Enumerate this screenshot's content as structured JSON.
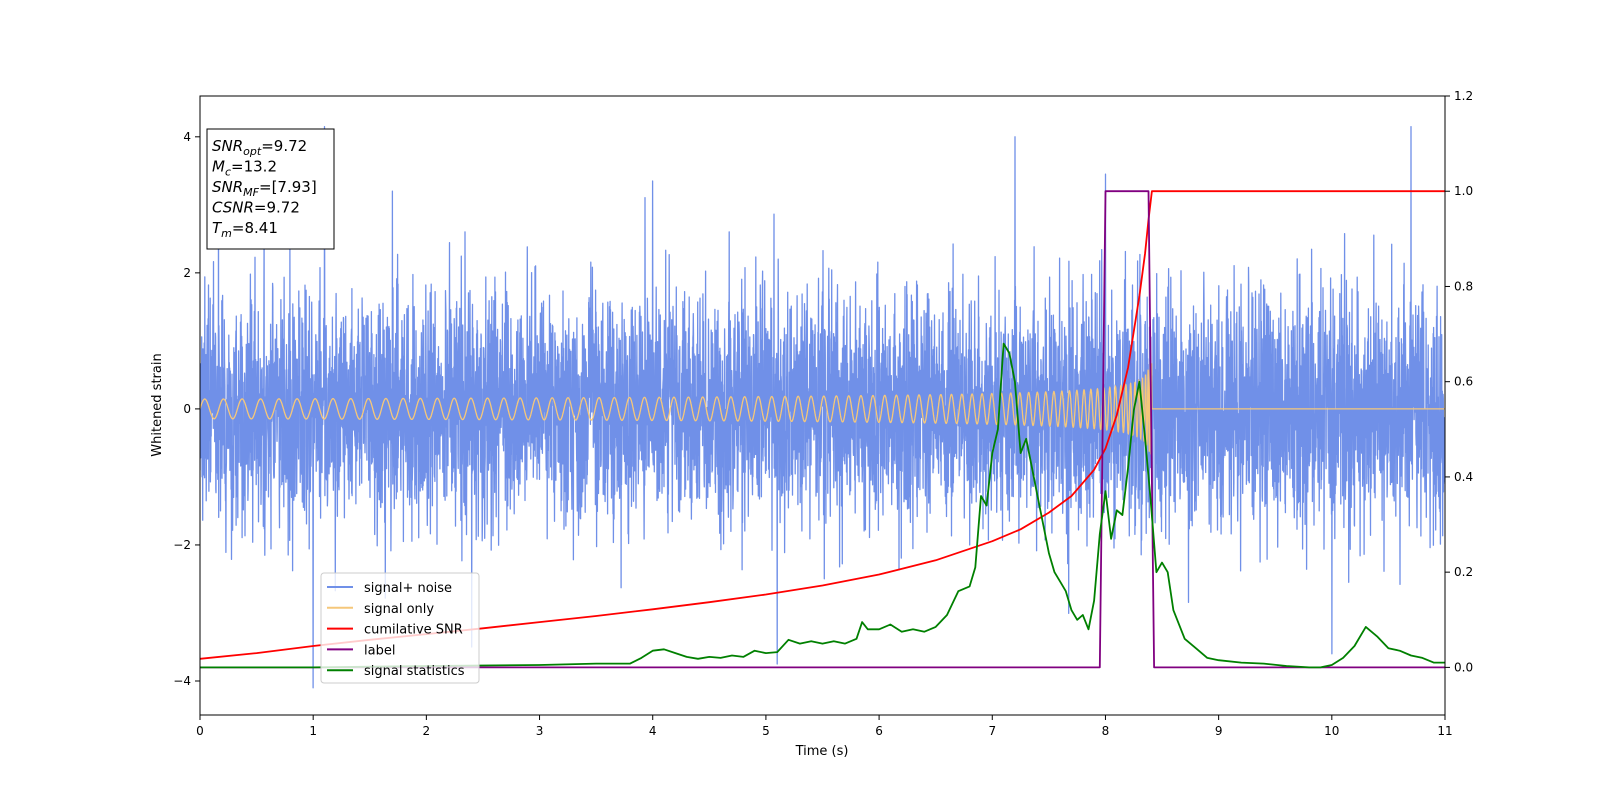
{
  "chart_data": {
    "type": "line",
    "xlabel": "Time (s)",
    "ylabel": "Whitened strain",
    "xlim": [
      0,
      11
    ],
    "ylim": [
      -4.5,
      4.6
    ],
    "y2lim": [
      -0.1,
      1.2
    ],
    "x_ticks": [
      0,
      1,
      2,
      3,
      4,
      5,
      6,
      7,
      8,
      9,
      10,
      11
    ],
    "y_ticks": [
      -4,
      -2,
      0,
      2,
      4
    ],
    "y2_ticks": [
      0.0,
      0.2,
      0.4,
      0.6,
      0.8,
      1.0,
      1.2
    ],
    "grid": false,
    "legend_position": "lower-left",
    "info_box": {
      "lines": [
        {
          "sym": "SNR",
          "sub": "opt",
          "rest": "=9.72"
        },
        {
          "sym": "M",
          "sub": "c",
          "rest": "=13.2"
        },
        {
          "sym": "SNR",
          "sub": "MF",
          "rest": "=[7.93]"
        },
        {
          "sym": "CSNR",
          "sub": "",
          "rest": "=9.72"
        },
        {
          "sym": "T",
          "sub": "m",
          "rest": "=8.41"
        }
      ]
    },
    "series": [
      {
        "name": "signal+ noise",
        "color": "#7090e8",
        "axis": "left",
        "kind": "noise",
        "sigma": 0.85,
        "extremes": [
          [
            1.0,
            -4.1
          ],
          [
            1.1,
            4.15
          ],
          [
            5.1,
            -3.75
          ],
          [
            7.2,
            4.0
          ],
          [
            10.0,
            -3.6
          ],
          [
            10.7,
            4.15
          ],
          [
            4.0,
            3.35
          ],
          [
            8.0,
            3.45
          ],
          [
            1.7,
            3.2
          ],
          [
            2.4,
            -3.5
          ]
        ]
      },
      {
        "name": "signal only",
        "color": "#f5c77a",
        "axis": "left",
        "kind": "chirp",
        "merger_time": 8.41,
        "peak_amplitude": 0.7
      },
      {
        "name": "cumilative SNR",
        "color": "#ff0000",
        "axis": "right",
        "x": [
          0,
          0.5,
          1,
          1.5,
          2,
          2.5,
          3,
          3.5,
          4,
          4.5,
          5,
          5.5,
          6,
          6.5,
          7,
          7.25,
          7.5,
          7.7,
          7.9,
          8.0,
          8.1,
          8.2,
          8.3,
          8.35,
          8.38,
          8.41,
          11
        ],
        "y": [
          0.018,
          0.03,
          0.045,
          0.058,
          0.07,
          0.082,
          0.095,
          0.108,
          0.122,
          0.137,
          0.153,
          0.172,
          0.195,
          0.225,
          0.265,
          0.29,
          0.325,
          0.36,
          0.415,
          0.46,
          0.53,
          0.63,
          0.78,
          0.87,
          0.94,
          1.0,
          1.0
        ]
      },
      {
        "name": "label",
        "color": "#800080",
        "axis": "right",
        "x": [
          0,
          7.95,
          8.0,
          8.38,
          8.43,
          11
        ],
        "y": [
          0.0,
          0.0,
          1.0,
          1.0,
          0.0,
          0.0
        ]
      },
      {
        "name": "signal statistics",
        "color": "#008000",
        "axis": "right",
        "x": [
          0,
          1,
          2,
          3,
          3.5,
          3.8,
          3.9,
          4.0,
          4.1,
          4.2,
          4.3,
          4.4,
          4.5,
          4.6,
          4.7,
          4.8,
          4.9,
          5.0,
          5.1,
          5.2,
          5.3,
          5.4,
          5.5,
          5.6,
          5.7,
          5.8,
          5.85,
          5.9,
          6.0,
          6.1,
          6.2,
          6.3,
          6.4,
          6.5,
          6.6,
          6.7,
          6.8,
          6.85,
          6.9,
          6.95,
          7.0,
          7.05,
          7.1,
          7.15,
          7.2,
          7.25,
          7.3,
          7.35,
          7.4,
          7.45,
          7.5,
          7.55,
          7.6,
          7.65,
          7.7,
          7.75,
          7.8,
          7.85,
          7.9,
          7.95,
          8.0,
          8.05,
          8.1,
          8.15,
          8.2,
          8.25,
          8.3,
          8.35,
          8.4,
          8.45,
          8.5,
          8.55,
          8.6,
          8.7,
          8.8,
          8.9,
          9.0,
          9.2,
          9.4,
          9.6,
          9.8,
          9.9,
          10.0,
          10.1,
          10.2,
          10.3,
          10.4,
          10.5,
          10.6,
          10.7,
          10.8,
          10.9,
          11.0
        ],
        "y": [
          0.0,
          0.0,
          0.003,
          0.005,
          0.008,
          0.008,
          0.02,
          0.035,
          0.038,
          0.03,
          0.022,
          0.018,
          0.022,
          0.02,
          0.025,
          0.022,
          0.035,
          0.03,
          0.032,
          0.058,
          0.05,
          0.055,
          0.05,
          0.055,
          0.05,
          0.06,
          0.095,
          0.08,
          0.08,
          0.09,
          0.075,
          0.08,
          0.075,
          0.085,
          0.11,
          0.16,
          0.17,
          0.21,
          0.36,
          0.34,
          0.45,
          0.5,
          0.68,
          0.66,
          0.6,
          0.45,
          0.48,
          0.42,
          0.36,
          0.3,
          0.24,
          0.2,
          0.18,
          0.16,
          0.12,
          0.1,
          0.11,
          0.08,
          0.14,
          0.28,
          0.37,
          0.27,
          0.33,
          0.32,
          0.42,
          0.54,
          0.6,
          0.48,
          0.35,
          0.2,
          0.22,
          0.2,
          0.12,
          0.06,
          0.04,
          0.02,
          0.015,
          0.01,
          0.008,
          0.003,
          0.0,
          0.0,
          0.005,
          0.02,
          0.045,
          0.085,
          0.065,
          0.04,
          0.035,
          0.025,
          0.02,
          0.01,
          0.01
        ]
      }
    ]
  }
}
